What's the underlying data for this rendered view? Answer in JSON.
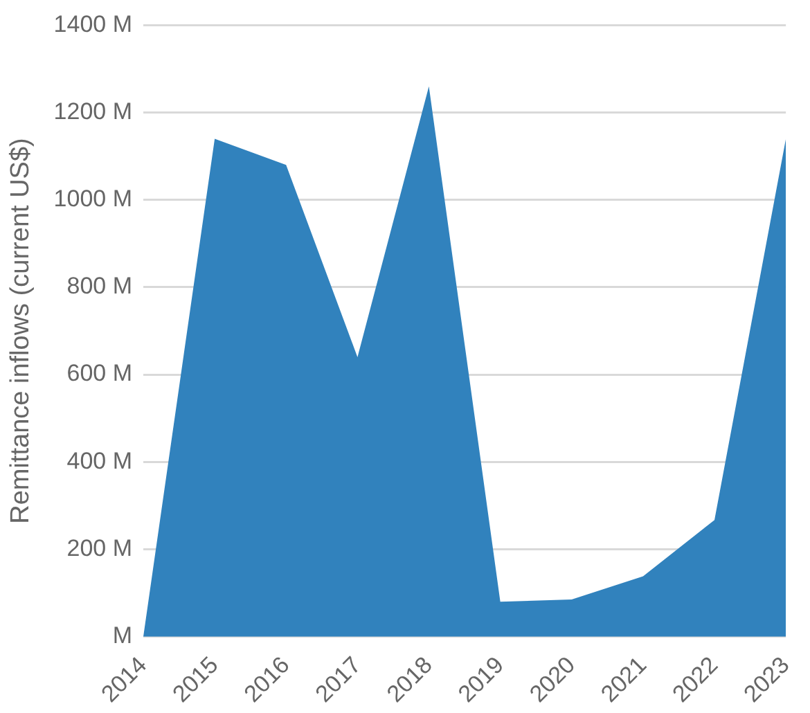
{
  "chart_data": {
    "type": "area",
    "ylabel": "Remittance inflows (current US$)",
    "categories": [
      "2014",
      "2015",
      "2016",
      "2017",
      "2018",
      "2019",
      "2020",
      "2021",
      "2022",
      "2023"
    ],
    "series": [
      {
        "color": "#3182bd",
        "values": [
          0,
          1140,
          1080,
          640,
          1260,
          80,
          85,
          138,
          267,
          1140
        ]
      }
    ],
    "ylim": [
      0,
      1400
    ],
    "yticks": [
      {
        "value": 0,
        "label": "M"
      },
      {
        "value": 200,
        "label": "200 M"
      },
      {
        "value": 400,
        "label": "400 M"
      },
      {
        "value": 600,
        "label": "600 M"
      },
      {
        "value": 800,
        "label": "800 M"
      },
      {
        "value": 1000,
        "label": "1000 M"
      },
      {
        "value": 1200,
        "label": "1200 M"
      },
      {
        "value": 1400,
        "label": "1400 M"
      }
    ],
    "grid": "y",
    "legend": false
  }
}
